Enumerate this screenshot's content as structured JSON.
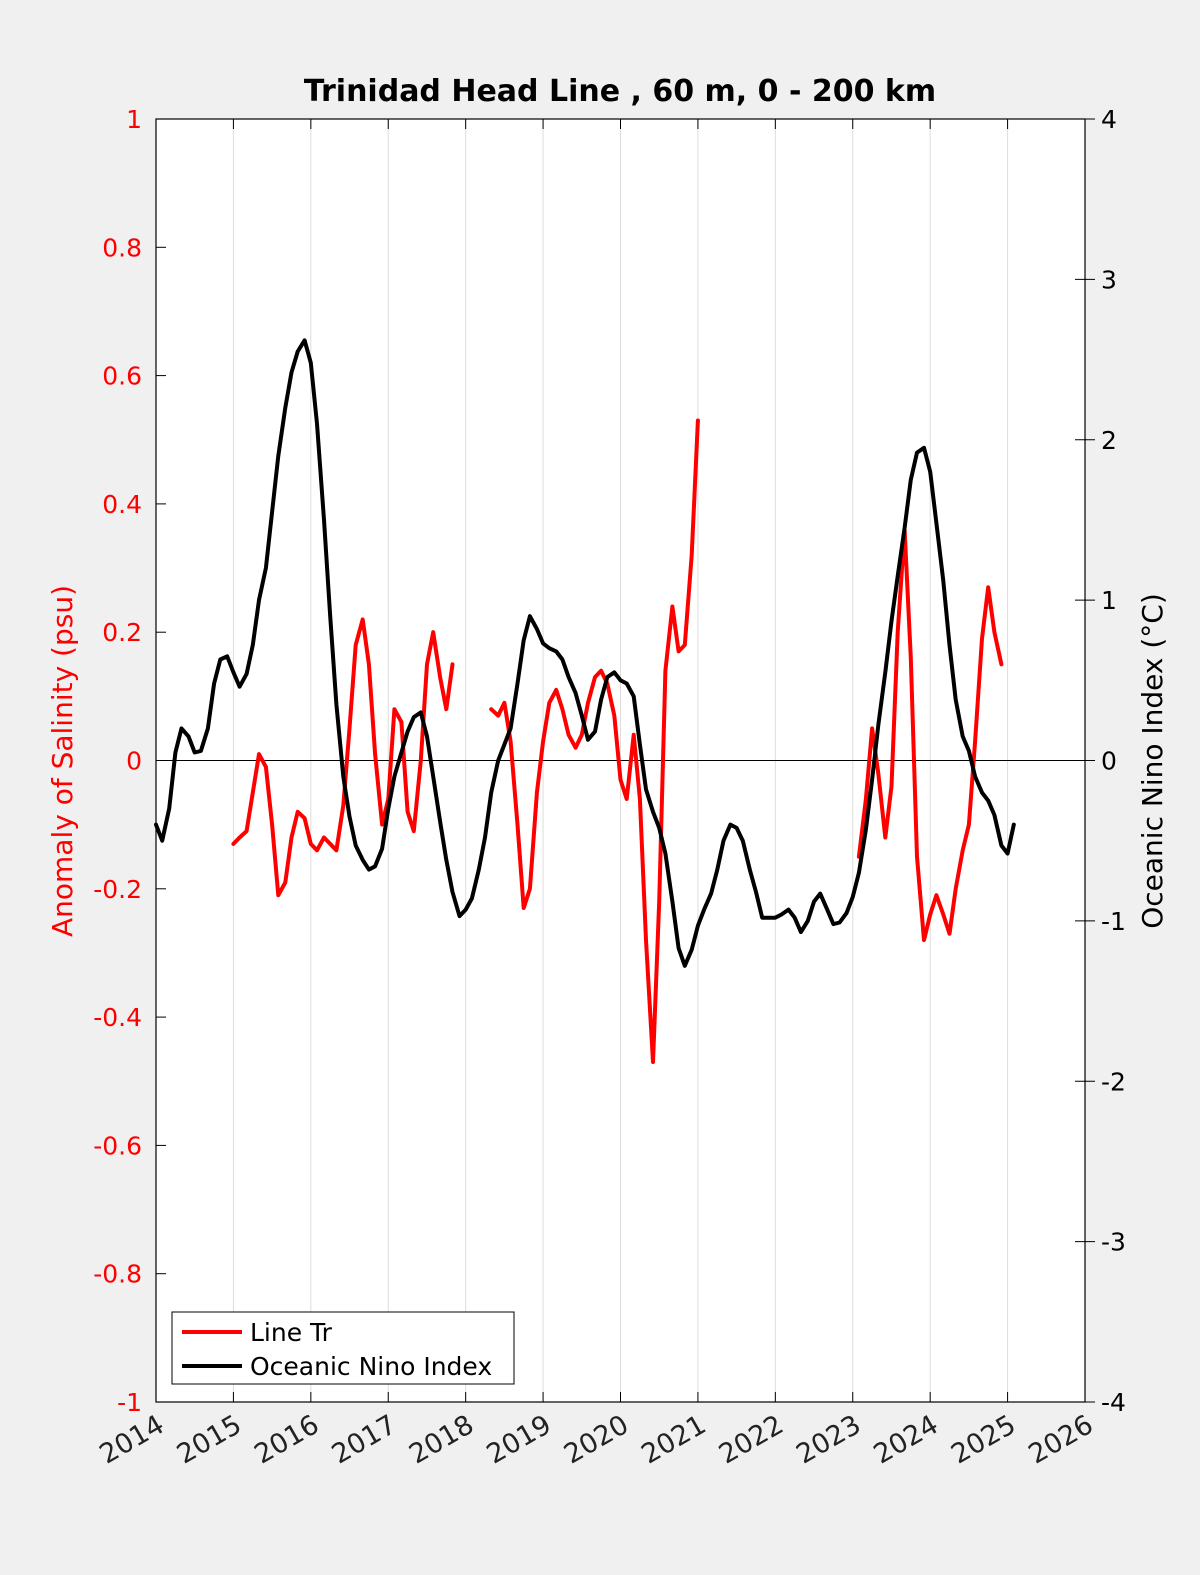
{
  "chart_data": {
    "type": "line",
    "title": "Trinidad Head Line , 60 m, 0 - 200 km",
    "ylabel_left": "Anomaly of Salinity (psu)",
    "ylabel_right": "Oceanic Nino Index (°C)",
    "xlabel": "",
    "xlim": [
      2014,
      2026
    ],
    "ylim_left": [
      -1,
      1
    ],
    "ylim_right": [
      -4,
      4
    ],
    "x_ticks": [
      "2014",
      "2015",
      "2016",
      "2017",
      "2018",
      "2019",
      "2020",
      "2021",
      "2022",
      "2023",
      "2024",
      "2025",
      "2026"
    ],
    "y_left_ticks": [
      "-1",
      "-0.8",
      "-0.6",
      "-0.4",
      "-0.2",
      "0",
      "0.2",
      "0.4",
      "0.6",
      "0.8",
      "1"
    ],
    "y_right_ticks": [
      "-4",
      "-3",
      "-2",
      "-1",
      "0",
      "1",
      "2",
      "3",
      "4"
    ],
    "grid": "vertical lines at x ticks",
    "zero_line": true,
    "legend_position": "bottom-left",
    "colors": {
      "salinity": "#ff0000",
      "oni": "#000000",
      "left_axis": "#ff0000",
      "right_axis": "#000000",
      "grid": "#dddddd"
    },
    "series": [
      {
        "name": "Line Tr",
        "axis": "left",
        "segments": [
          [
            [
              2015.0,
              -0.13
            ],
            [
              2015.08,
              -0.12
            ],
            [
              2015.17,
              -0.11
            ],
            [
              2015.25,
              -0.05
            ],
            [
              2015.33,
              0.01
            ],
            [
              2015.42,
              -0.01
            ],
            [
              2015.5,
              -0.1
            ],
            [
              2015.58,
              -0.21
            ],
            [
              2015.67,
              -0.19
            ],
            [
              2015.75,
              -0.12
            ],
            [
              2015.83,
              -0.08
            ],
            [
              2015.92,
              -0.09
            ],
            [
              2016.0,
              -0.13
            ],
            [
              2016.08,
              -0.14
            ],
            [
              2016.17,
              -0.12
            ],
            [
              2016.25,
              -0.13
            ],
            [
              2016.33,
              -0.14
            ],
            [
              2016.42,
              -0.07
            ],
            [
              2016.5,
              0.05
            ],
            [
              2016.58,
              0.18
            ],
            [
              2016.67,
              0.22
            ],
            [
              2016.75,
              0.15
            ],
            [
              2016.83,
              0.01
            ],
            [
              2016.92,
              -0.1
            ],
            [
              2017.0,
              -0.06
            ],
            [
              2017.08,
              0.08
            ],
            [
              2017.17,
              0.06
            ],
            [
              2017.25,
              -0.08
            ],
            [
              2017.33,
              -0.11
            ],
            [
              2017.42,
              0.0
            ],
            [
              2017.5,
              0.15
            ],
            [
              2017.58,
              0.2
            ],
            [
              2017.67,
              0.13
            ],
            [
              2017.75,
              0.08
            ],
            [
              2017.83,
              0.15
            ]
          ],
          [
            [
              2018.33,
              0.08
            ],
            [
              2018.42,
              0.07
            ],
            [
              2018.5,
              0.09
            ],
            [
              2018.58,
              0.03
            ],
            [
              2018.67,
              -0.1
            ],
            [
              2018.75,
              -0.23
            ],
            [
              2018.83,
              -0.2
            ],
            [
              2018.92,
              -0.05
            ],
            [
              2019.0,
              0.03
            ],
            [
              2019.08,
              0.09
            ],
            [
              2019.17,
              0.11
            ],
            [
              2019.25,
              0.08
            ],
            [
              2019.33,
              0.04
            ],
            [
              2019.42,
              0.02
            ],
            [
              2019.5,
              0.04
            ],
            [
              2019.58,
              0.09
            ],
            [
              2019.67,
              0.13
            ],
            [
              2019.75,
              0.14
            ],
            [
              2019.83,
              0.12
            ],
            [
              2019.92,
              0.07
            ],
            [
              2020.0,
              -0.03
            ],
            [
              2020.08,
              -0.06
            ],
            [
              2020.17,
              0.04
            ],
            [
              2020.25,
              -0.06
            ],
            [
              2020.33,
              -0.28
            ],
            [
              2020.42,
              -0.47
            ],
            [
              2020.5,
              -0.22
            ],
            [
              2020.58,
              0.14
            ],
            [
              2020.67,
              0.24
            ],
            [
              2020.75,
              0.17
            ],
            [
              2020.83,
              0.18
            ],
            [
              2020.92,
              0.32
            ],
            [
              2021.0,
              0.53
            ]
          ],
          [
            [
              2023.08,
              -0.15
            ],
            [
              2023.17,
              -0.06
            ],
            [
              2023.25,
              0.05
            ],
            [
              2023.33,
              -0.02
            ],
            [
              2023.42,
              -0.12
            ],
            [
              2023.5,
              -0.04
            ],
            [
              2023.58,
              0.2
            ],
            [
              2023.67,
              0.36
            ],
            [
              2023.75,
              0.16
            ],
            [
              2023.83,
              -0.15
            ],
            [
              2023.92,
              -0.28
            ],
            [
              2024.0,
              -0.24
            ],
            [
              2024.08,
              -0.21
            ],
            [
              2024.17,
              -0.24
            ],
            [
              2024.25,
              -0.27
            ],
            [
              2024.33,
              -0.2
            ],
            [
              2024.42,
              -0.14
            ],
            [
              2024.5,
              -0.1
            ],
            [
              2024.58,
              0.03
            ],
            [
              2024.67,
              0.19
            ],
            [
              2024.75,
              0.27
            ],
            [
              2024.83,
              0.2
            ],
            [
              2024.92,
              0.15
            ]
          ]
        ]
      },
      {
        "name": "Oceanic Nino Index",
        "axis": "right",
        "segments": [
          [
            [
              2014.0,
              -0.4
            ],
            [
              2014.08,
              -0.5
            ],
            [
              2014.17,
              -0.3
            ],
            [
              2014.25,
              0.05
            ],
            [
              2014.33,
              0.2
            ],
            [
              2014.42,
              0.15
            ],
            [
              2014.5,
              0.05
            ],
            [
              2014.58,
              0.06
            ],
            [
              2014.67,
              0.2
            ],
            [
              2014.75,
              0.48
            ],
            [
              2014.83,
              0.63
            ],
            [
              2014.92,
              0.65
            ],
            [
              2015.0,
              0.55
            ],
            [
              2015.08,
              0.46
            ],
            [
              2015.17,
              0.54
            ],
            [
              2015.25,
              0.72
            ],
            [
              2015.33,
              1.0
            ],
            [
              2015.42,
              1.2
            ],
            [
              2015.5,
              1.55
            ],
            [
              2015.58,
              1.9
            ],
            [
              2015.67,
              2.2
            ],
            [
              2015.75,
              2.42
            ],
            [
              2015.83,
              2.55
            ],
            [
              2015.92,
              2.62
            ],
            [
              2016.0,
              2.48
            ],
            [
              2016.08,
              2.1
            ],
            [
              2016.17,
              1.5
            ],
            [
              2016.25,
              0.9
            ],
            [
              2016.33,
              0.35
            ],
            [
              2016.42,
              -0.1
            ],
            [
              2016.5,
              -0.35
            ],
            [
              2016.58,
              -0.53
            ],
            [
              2016.67,
              -0.62
            ],
            [
              2016.75,
              -0.68
            ],
            [
              2016.83,
              -0.66
            ],
            [
              2016.92,
              -0.55
            ],
            [
              2017.0,
              -0.3
            ],
            [
              2017.08,
              -0.1
            ],
            [
              2017.17,
              0.05
            ],
            [
              2017.25,
              0.18
            ],
            [
              2017.33,
              0.27
            ],
            [
              2017.42,
              0.3
            ],
            [
              2017.5,
              0.15
            ],
            [
              2017.58,
              -0.1
            ],
            [
              2017.67,
              -0.38
            ],
            [
              2017.75,
              -0.62
            ],
            [
              2017.83,
              -0.82
            ],
            [
              2017.92,
              -0.97
            ],
            [
              2018.0,
              -0.93
            ],
            [
              2018.08,
              -0.86
            ],
            [
              2018.17,
              -0.68
            ],
            [
              2018.25,
              -0.48
            ],
            [
              2018.33,
              -0.2
            ],
            [
              2018.42,
              0.0
            ],
            [
              2018.5,
              0.1
            ],
            [
              2018.58,
              0.2
            ],
            [
              2018.67,
              0.48
            ],
            [
              2018.75,
              0.75
            ],
            [
              2018.83,
              0.9
            ],
            [
              2018.92,
              0.82
            ],
            [
              2019.0,
              0.73
            ],
            [
              2019.08,
              0.7
            ],
            [
              2019.17,
              0.68
            ],
            [
              2019.25,
              0.63
            ],
            [
              2019.33,
              0.52
            ],
            [
              2019.42,
              0.42
            ],
            [
              2019.5,
              0.28
            ],
            [
              2019.58,
              0.13
            ],
            [
              2019.67,
              0.18
            ],
            [
              2019.75,
              0.38
            ],
            [
              2019.83,
              0.52
            ],
            [
              2019.92,
              0.55
            ],
            [
              2020.0,
              0.5
            ],
            [
              2020.08,
              0.48
            ],
            [
              2020.17,
              0.4
            ],
            [
              2020.25,
              0.1
            ],
            [
              2020.33,
              -0.18
            ],
            [
              2020.42,
              -0.32
            ],
            [
              2020.5,
              -0.42
            ],
            [
              2020.58,
              -0.58
            ],
            [
              2020.67,
              -0.88
            ],
            [
              2020.75,
              -1.17
            ],
            [
              2020.83,
              -1.28
            ],
            [
              2020.92,
              -1.18
            ],
            [
              2021.0,
              -1.03
            ],
            [
              2021.08,
              -0.93
            ],
            [
              2021.17,
              -0.83
            ],
            [
              2021.25,
              -0.68
            ],
            [
              2021.33,
              -0.5
            ],
            [
              2021.42,
              -0.4
            ],
            [
              2021.5,
              -0.42
            ],
            [
              2021.58,
              -0.5
            ],
            [
              2021.67,
              -0.68
            ],
            [
              2021.75,
              -0.82
            ],
            [
              2021.83,
              -0.98
            ],
            [
              2021.92,
              -0.98
            ],
            [
              2022.0,
              -0.98
            ],
            [
              2022.08,
              -0.96
            ],
            [
              2022.17,
              -0.93
            ],
            [
              2022.25,
              -0.98
            ],
            [
              2022.33,
              -1.07
            ],
            [
              2022.42,
              -1.0
            ],
            [
              2022.5,
              -0.88
            ],
            [
              2022.58,
              -0.83
            ],
            [
              2022.67,
              -0.93
            ],
            [
              2022.75,
              -1.02
            ],
            [
              2022.83,
              -1.01
            ],
            [
              2022.92,
              -0.95
            ],
            [
              2023.0,
              -0.85
            ],
            [
              2023.08,
              -0.7
            ],
            [
              2023.17,
              -0.43
            ],
            [
              2023.25,
              -0.12
            ],
            [
              2023.33,
              0.22
            ],
            [
              2023.42,
              0.55
            ],
            [
              2023.5,
              0.87
            ],
            [
              2023.58,
              1.15
            ],
            [
              2023.67,
              1.45
            ],
            [
              2023.75,
              1.75
            ],
            [
              2023.83,
              1.92
            ],
            [
              2023.92,
              1.95
            ],
            [
              2024.0,
              1.8
            ],
            [
              2024.08,
              1.48
            ],
            [
              2024.17,
              1.12
            ],
            [
              2024.25,
              0.72
            ],
            [
              2024.33,
              0.38
            ],
            [
              2024.42,
              0.15
            ],
            [
              2024.5,
              0.06
            ],
            [
              2024.58,
              -0.1
            ],
            [
              2024.67,
              -0.2
            ],
            [
              2024.75,
              -0.25
            ],
            [
              2024.83,
              -0.34
            ],
            [
              2024.92,
              -0.53
            ],
            [
              2025.0,
              -0.58
            ],
            [
              2025.08,
              -0.4
            ]
          ]
        ]
      }
    ]
  },
  "legend": {
    "items": [
      {
        "label": "Line Tr",
        "color": "#ff0000"
      },
      {
        "label": "Oceanic Nino Index",
        "color": "#000000"
      }
    ]
  }
}
